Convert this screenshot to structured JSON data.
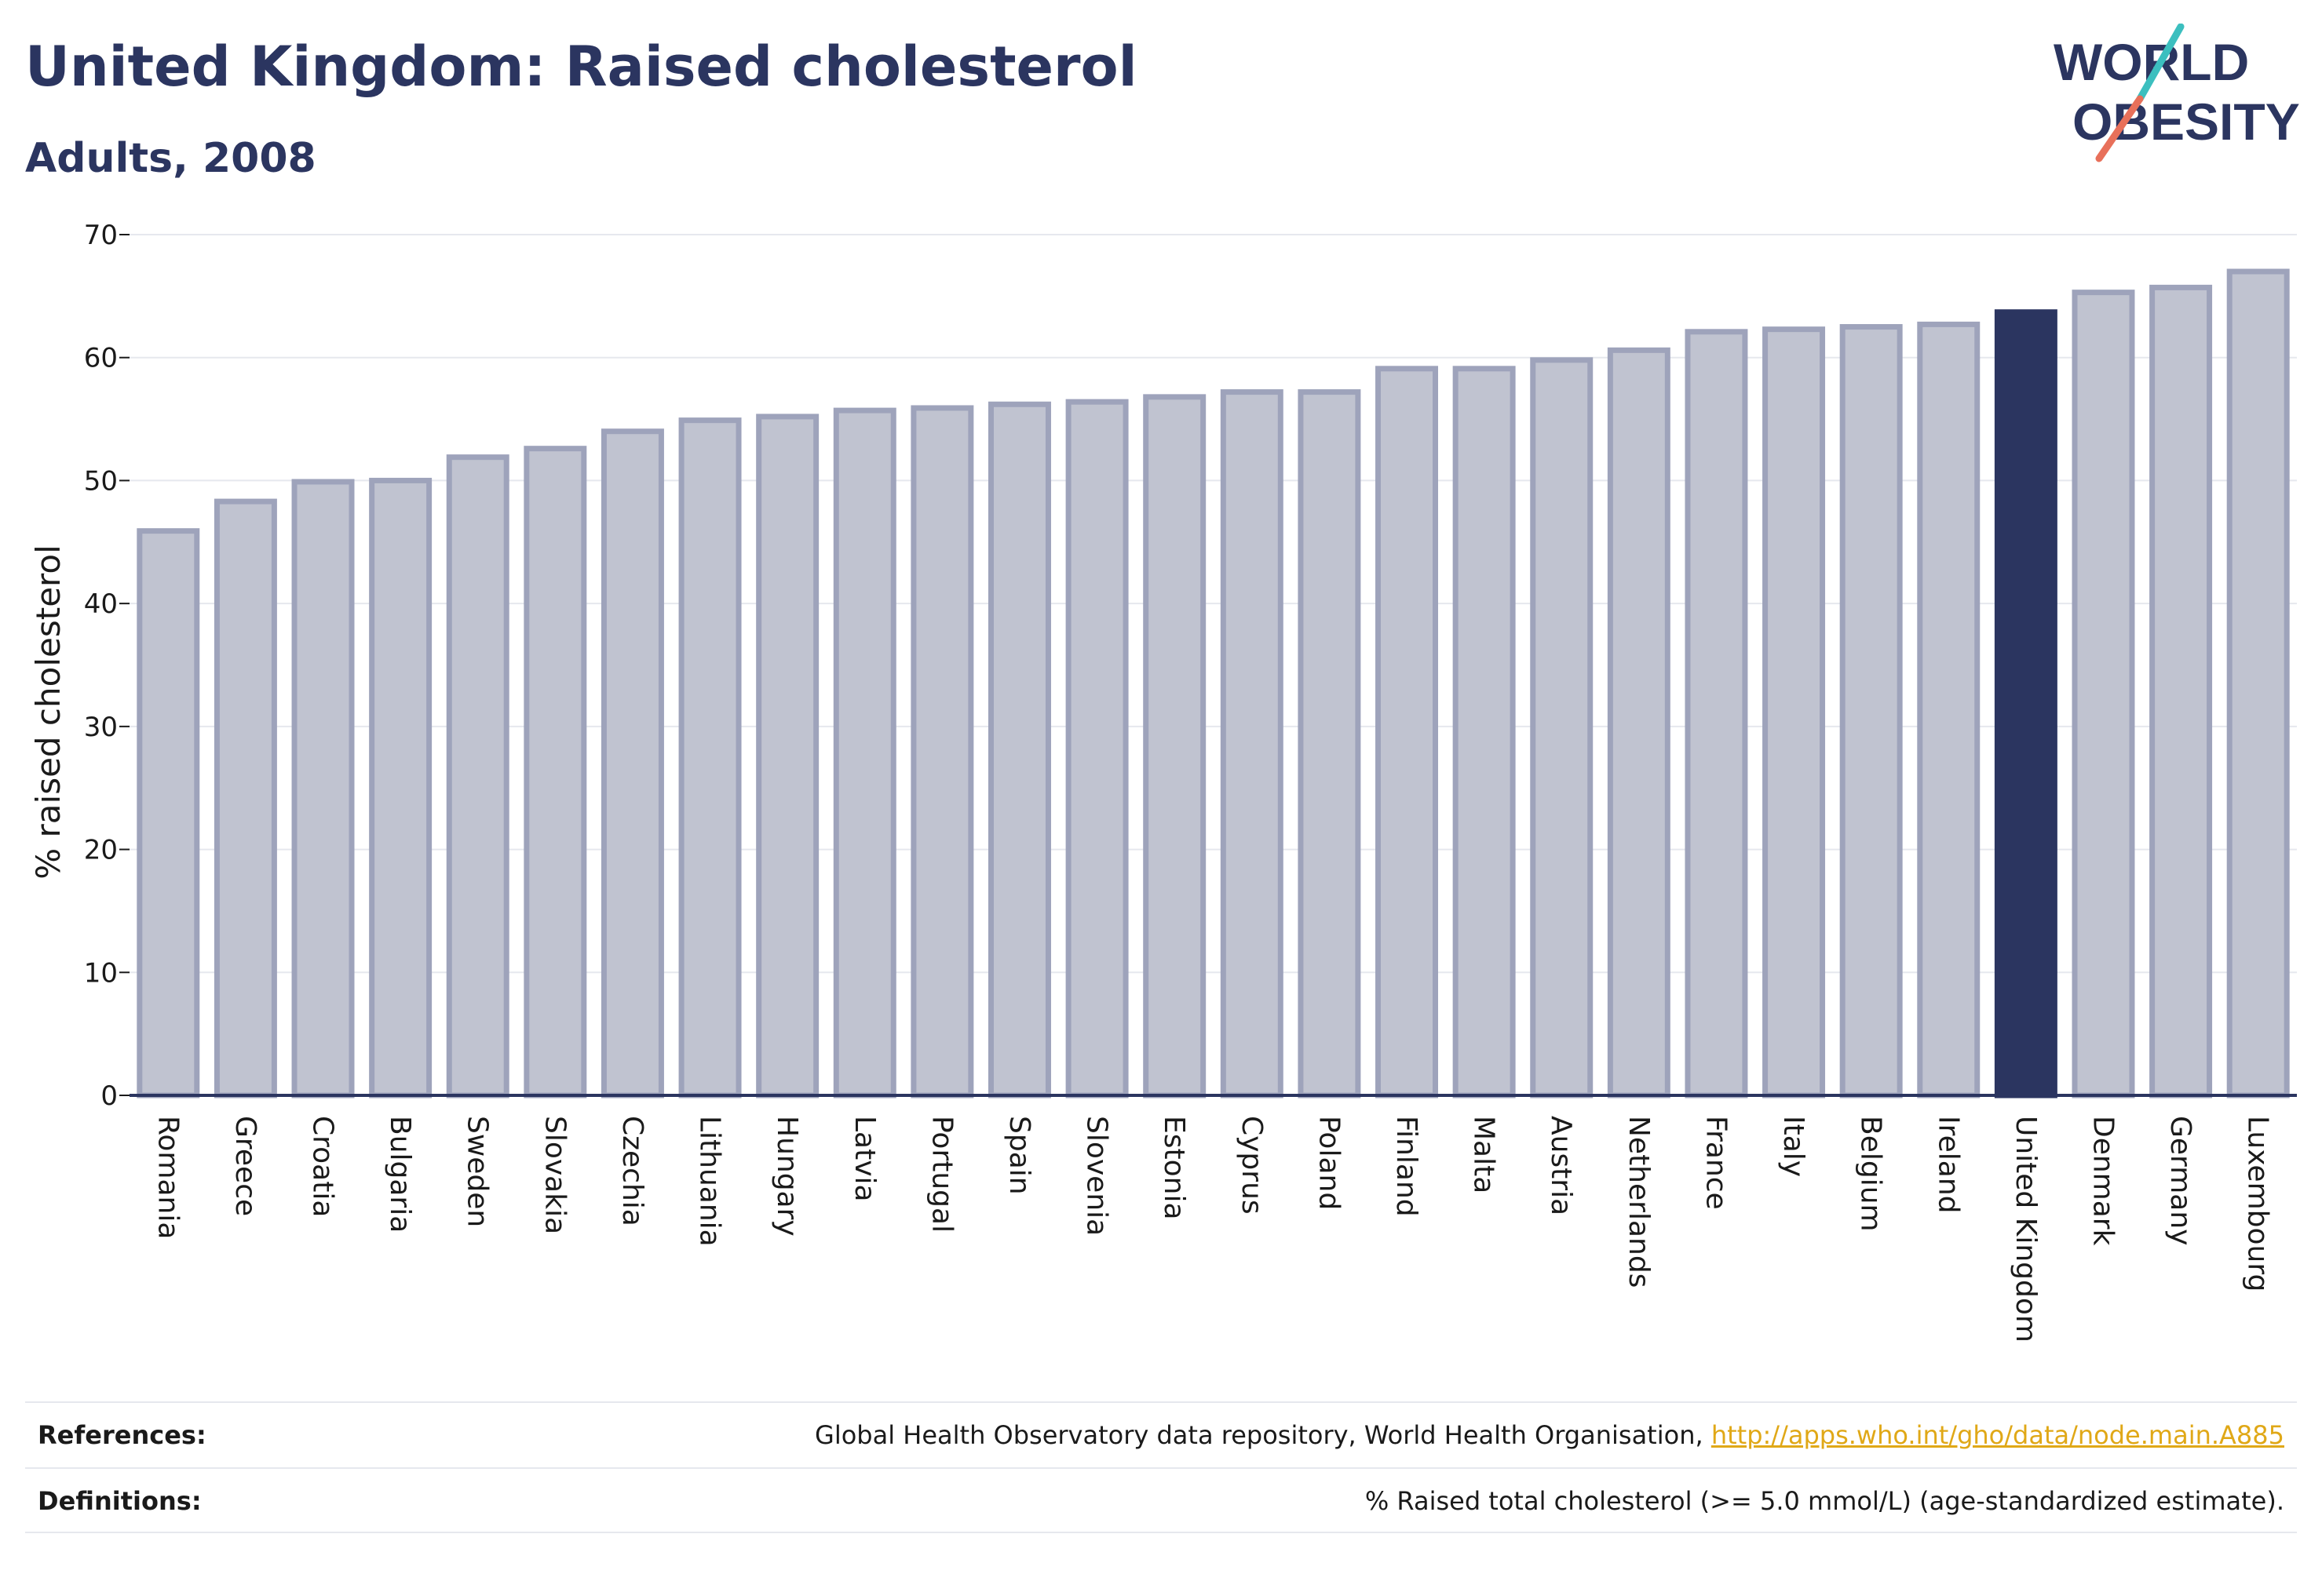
{
  "header": {
    "title": "United Kingdom: Raised cholesterol",
    "subtitle": "Adults, 2008"
  },
  "logo": {
    "line1": "WORLD",
    "line2": "OBESITY",
    "accent_colors": [
      "#3cbfbf",
      "#e8705a"
    ]
  },
  "chart_data": {
    "type": "bar",
    "title": "United Kingdom: Raised cholesterol",
    "subtitle": "Adults, 2008",
    "xlabel": "",
    "ylabel": "% raised cholesterol",
    "ylim": [
      0,
      70
    ],
    "yticks": [
      0,
      10,
      20,
      30,
      40,
      50,
      60,
      70
    ],
    "grid": true,
    "highlight": "United Kingdom",
    "colors": {
      "bar": "#c0c3d0",
      "bar_border": "#9ea3bb",
      "highlight": "#2b3560",
      "axis": "#2b3560",
      "grid": "#e6e8ee"
    },
    "categories": [
      "Romania",
      "Greece",
      "Croatia",
      "Bulgaria",
      "Sweden",
      "Slovakia",
      "Czechia",
      "Lithuania",
      "Hungary",
      "Latvia",
      "Portugal",
      "Spain",
      "Slovenia",
      "Estonia",
      "Cyprus",
      "Poland",
      "Finland",
      "Malta",
      "Austria",
      "Netherlands",
      "France",
      "Italy",
      "Belgium",
      "Ireland",
      "United Kingdom",
      "Denmark",
      "Germany",
      "Luxembourg"
    ],
    "values": [
      45.9,
      48.3,
      49.9,
      50.0,
      51.9,
      52.6,
      54.0,
      54.9,
      55.2,
      55.7,
      55.9,
      56.2,
      56.4,
      56.8,
      57.2,
      57.2,
      59.1,
      59.1,
      59.8,
      60.6,
      62.1,
      62.3,
      62.5,
      62.7,
      63.7,
      65.3,
      65.7,
      67.0
    ]
  },
  "footer": {
    "references_label": "References:",
    "references_text": "Global Health Observatory data repository, World Health Organisation, ",
    "references_link": "http://apps.who.int/gho/data/node.main.A885",
    "definitions_label": "Definitions:",
    "definitions_text": "% Raised total cholesterol (>= 5.0 mmol/L) (age-standardized estimate)."
  }
}
